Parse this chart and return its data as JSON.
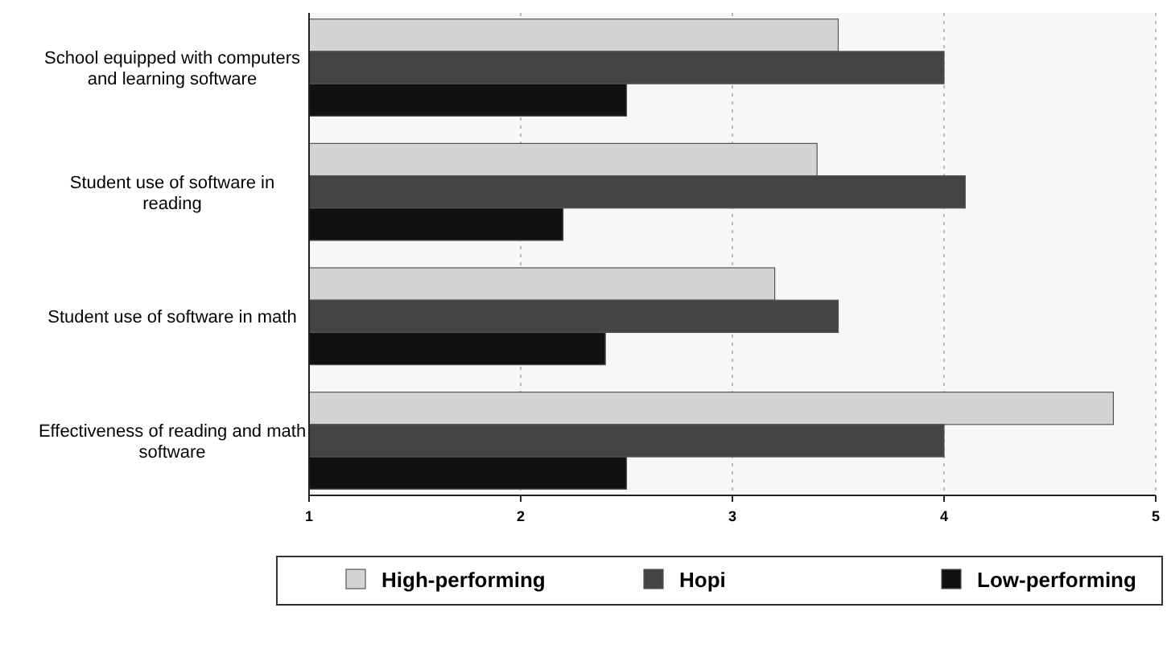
{
  "chart_data": {
    "type": "bar",
    "orientation": "horizontal",
    "categories": [
      "School equipped with computers and learning software",
      "Student use of software in reading",
      "Student use of software in math",
      "Effectiveness of reading and math software"
    ],
    "series": [
      {
        "name": "High-performing",
        "color": "#d4d4d4",
        "values": [
          3.5,
          3.4,
          3.2,
          4.8
        ]
      },
      {
        "name": "Hopi",
        "color": "#444444",
        "values": [
          4.0,
          4.1,
          3.5,
          4.0
        ]
      },
      {
        "name": "Low-performing",
        "color": "#111111",
        "values": [
          2.5,
          2.2,
          2.4,
          2.5
        ]
      }
    ],
    "xlim": [
      1,
      5
    ],
    "xticks": [
      1,
      2,
      3,
      4,
      5
    ],
    "grid": "x",
    "legend": "bottom"
  }
}
